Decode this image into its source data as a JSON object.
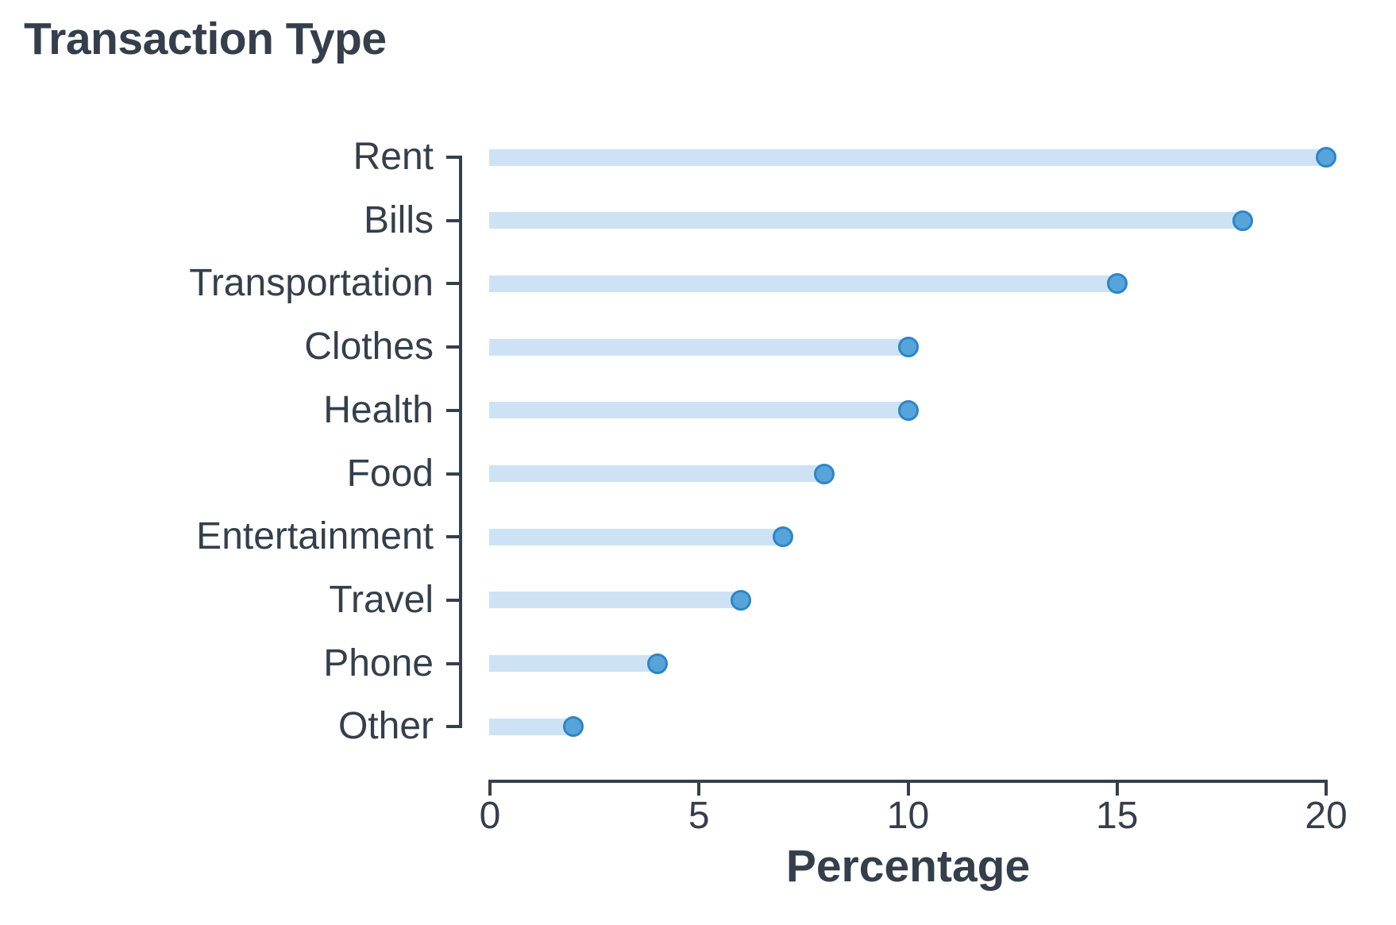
{
  "title": "Transaction Type",
  "chart_data": {
    "type": "bar",
    "style": "lollipop",
    "orientation": "horizontal",
    "title": "Transaction Type",
    "xlabel": "Percentage",
    "ylabel": "",
    "categories": [
      "Rent",
      "Bills",
      "Transportation",
      "Clothes",
      "Health",
      "Food",
      "Entertainment",
      "Travel",
      "Phone",
      "Other"
    ],
    "values": [
      20,
      18,
      15,
      10,
      10,
      8,
      7,
      6,
      4,
      2
    ],
    "xlim": [
      0,
      20
    ],
    "xticks": [
      0,
      5,
      10,
      15,
      20
    ],
    "grid": false,
    "legend": false,
    "colors": {
      "bar": "#cde3f5",
      "dot_fill": "#57a4da",
      "dot_ring": "#2d85c6",
      "axis": "#36404b",
      "text": "#343f4b"
    }
  }
}
